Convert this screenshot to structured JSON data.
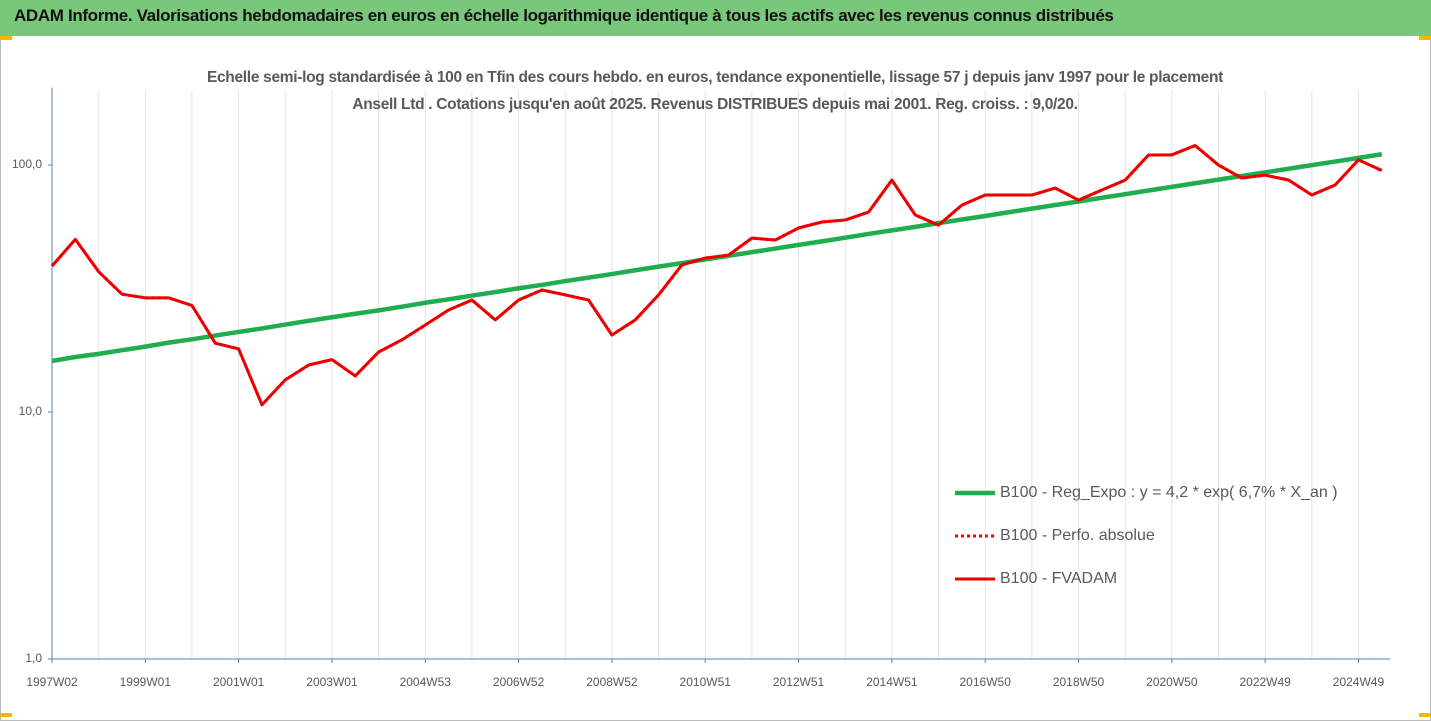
{
  "chart_data": {
    "type": "line",
    "title": "ADAM Informe. Valorisations hebdomadaires en euros en échelle logarithmique identique à tous les actifs avec les revenus connus distribués",
    "subtitle": "Echelle semi-log standardisée à 100 en Tfin des cours hebdo. en euros, tendance exponentielle, lissage 57 j depuis janv 1997 pour le placement Ansell Ltd . Cotations jusqu'en août 2025. Revenus DISTRIBUES depuis mai 2001. Reg. croiss. : 9,0/20.",
    "categories": [
      "1997W02",
      null,
      null,
      null,
      "1999W01",
      null,
      null,
      null,
      "2001W01",
      null,
      null,
      null,
      "2003W01",
      null,
      null,
      null,
      "2004W53",
      null,
      null,
      null,
      "2006W52",
      null,
      null,
      null,
      "2008W52",
      null,
      null,
      null,
      "2010W51",
      null,
      null,
      null,
      "2012W51",
      null,
      null,
      null,
      "2014W51",
      null,
      null,
      null,
      "2016W50",
      null,
      null,
      null,
      "2018W50",
      null,
      null,
      null,
      "2020W50",
      null,
      null,
      null,
      "2022W49",
      null,
      null,
      null,
      "2024W49",
      null
    ],
    "series": [
      {
        "name": "B100 - Reg_Expo : y = 4,2 * exp( 6,7% *  X_an )",
        "color": "#1fad4f",
        "style": "solid",
        "values": [
          16.1,
          16.7,
          17.2,
          17.8,
          18.4,
          19.1,
          19.7,
          20.4,
          21.1,
          21.8,
          22.6,
          23.4,
          24.2,
          25.0,
          25.8,
          26.7,
          27.7,
          28.6,
          29.6,
          30.6,
          31.7,
          32.7,
          33.9,
          35.0,
          36.2,
          37.5,
          38.8,
          40.1,
          41.5,
          42.9,
          44.4,
          45.9,
          47.5,
          49.1,
          50.8,
          52.6,
          54.4,
          56.2,
          58.2,
          60.2,
          62.2,
          64.4,
          66.6,
          68.9,
          71.2,
          73.7,
          76.2,
          78.9,
          81.6,
          84.4,
          87.3,
          90.3,
          93.4,
          96.6,
          99.9,
          103.3,
          106.9,
          110.6
        ]
      },
      {
        "name": "B100 - Perfo. absolue",
        "color": "#ff0000",
        "style": "dotted",
        "values": [
          39,
          50,
          37,
          30,
          29,
          29,
          27,
          19,
          18,
          10.7,
          13.5,
          15.5,
          16.3,
          14,
          17.5,
          19.6,
          22.5,
          25.9,
          28.4,
          23.6,
          28.4,
          31.2,
          29.8,
          28.4,
          20.5,
          23.6,
          29.8,
          39.4,
          42,
          43.2,
          50.6,
          49.7,
          55.6,
          58.8,
          59.9,
          64.5,
          86.9,
          62.8,
          57.1,
          68.8,
          75.6,
          75.6,
          75.6,
          80.7,
          72.1,
          79.2,
          86.9,
          109.8,
          110,
          120,
          100,
          88.6,
          91,
          87,
          75.6,
          83,
          105,
          95
        ]
      },
      {
        "name": "B100 - FVADAM",
        "color": "#ee0000",
        "style": "solid",
        "values": [
          39,
          50,
          37,
          30,
          29,
          29,
          27,
          19,
          18,
          10.7,
          13.5,
          15.5,
          16.3,
          14,
          17.5,
          19.6,
          22.5,
          25.9,
          28.4,
          23.6,
          28.4,
          31.2,
          29.8,
          28.4,
          20.5,
          23.6,
          29.8,
          39.4,
          42,
          43.2,
          50.6,
          49.7,
          55.6,
          58.8,
          59.9,
          64.5,
          86.9,
          62.8,
          57.1,
          68.8,
          75.6,
          75.6,
          75.6,
          80.7,
          72.1,
          79.2,
          86.9,
          109.8,
          110,
          120,
          100,
          88.6,
          91,
          87,
          75.6,
          83,
          105,
          95
        ]
      }
    ],
    "ylim": [
      1,
      200
    ],
    "yticks": [
      {
        "value": 1,
        "label": "1,0"
      },
      {
        "value": 10,
        "label": "10,0"
      },
      {
        "value": 100,
        "label": "100,0"
      }
    ],
    "log_scale": true,
    "grid": true,
    "legend": "right"
  }
}
